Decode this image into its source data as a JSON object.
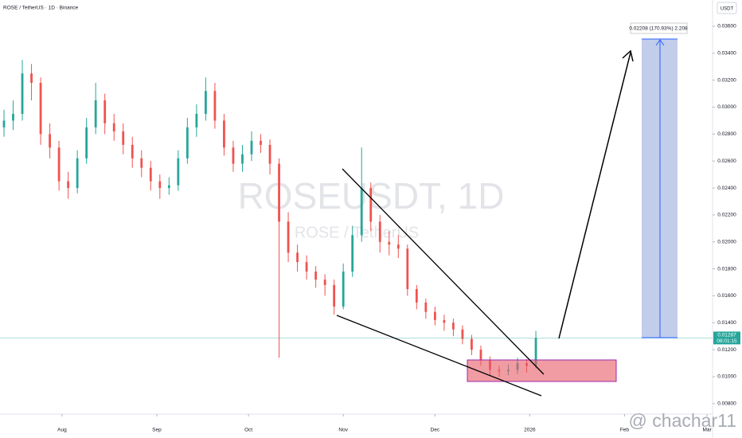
{
  "header": {
    "symbol": "ROSE / TetherUS · 1D · Binance",
    "currency": "USDT"
  },
  "watermark": {
    "ticker": "ROSEUSDT, 1D",
    "name": "ROSE / TetherUS"
  },
  "author": "@ chachar11",
  "chart_data": {
    "type": "candlestick",
    "xlim": [
      -20.3,
      212.8
    ],
    "ylim": [
      0.00722,
      0.03795
    ],
    "xticks": [
      {
        "value": 0,
        "label": "Aug"
      },
      {
        "value": 31,
        "label": "Sep"
      },
      {
        "value": 61,
        "label": "Oct"
      },
      {
        "value": 92,
        "label": "Nov"
      },
      {
        "value": 122,
        "label": "Dec"
      },
      {
        "value": 153,
        "label": "2026"
      },
      {
        "value": 184,
        "label": "Feb"
      },
      {
        "value": 211,
        "label": "Mar"
      }
    ],
    "yticks": [
      {
        "value": 0.008,
        "label": "0.00800"
      },
      {
        "value": 0.01,
        "label": "0.01000"
      },
      {
        "value": 0.012,
        "label": "0.01200"
      },
      {
        "value": 0.014,
        "label": "0.01400"
      },
      {
        "value": 0.016,
        "label": "0.01600"
      },
      {
        "value": 0.018,
        "label": "0.01800"
      },
      {
        "value": 0.02,
        "label": "0.02000"
      },
      {
        "value": 0.022,
        "label": "0.02200"
      },
      {
        "value": 0.024,
        "label": "0.02400"
      },
      {
        "value": 0.026,
        "label": "0.02600"
      },
      {
        "value": 0.028,
        "label": "0.02800"
      },
      {
        "value": 0.03,
        "label": "0.03000"
      },
      {
        "value": 0.032,
        "label": "0.03200"
      },
      {
        "value": 0.034,
        "label": "0.03400"
      },
      {
        "value": 0.036,
        "label": "0.03600"
      }
    ],
    "grid": false,
    "up_color": "#26a69a",
    "down_color": "#ef5350",
    "x": [
      -19,
      -16,
      -13,
      -10,
      -7,
      -4,
      -1,
      2,
      5,
      8,
      11,
      14,
      17,
      20,
      23,
      26,
      29,
      32,
      35,
      38,
      41,
      44,
      47,
      50,
      53,
      56,
      59,
      62,
      65,
      68,
      71,
      74,
      77,
      80,
      83,
      86,
      89,
      92,
      95,
      98,
      101,
      104,
      107,
      110,
      113,
      116,
      119,
      122,
      125,
      128,
      131,
      134,
      137,
      140,
      143,
      146,
      149,
      152,
      155
    ],
    "open": [
      0.0285,
      0.029,
      0.0295,
      0.0325,
      0.0318,
      0.028,
      0.027,
      0.0245,
      0.024,
      0.0262,
      0.0285,
      0.0305,
      0.0288,
      0.0282,
      0.0272,
      0.0262,
      0.0255,
      0.0245,
      0.024,
      0.0242,
      0.0262,
      0.0285,
      0.0295,
      0.0312,
      0.029,
      0.027,
      0.0258,
      0.0265,
      0.0275,
      0.0272,
      0.0258,
      0.0215,
      0.0192,
      0.0185,
      0.0178,
      0.0172,
      0.0168,
      0.0152,
      0.0178,
      0.0205,
      0.024,
      0.0215,
      0.02,
      0.0198,
      0.0195,
      0.0165,
      0.0155,
      0.0148,
      0.0142,
      0.014,
      0.0135,
      0.0128,
      0.012,
      0.0112,
      0.0105,
      0.0104,
      0.0105,
      0.011,
      0.0108
    ],
    "high": [
      0.0298,
      0.0305,
      0.0335,
      0.0332,
      0.0322,
      0.0288,
      0.0275,
      0.0252,
      0.0268,
      0.0292,
      0.0318,
      0.031,
      0.0295,
      0.0288,
      0.0278,
      0.0268,
      0.026,
      0.025,
      0.0248,
      0.0268,
      0.0292,
      0.0302,
      0.0322,
      0.0318,
      0.0295,
      0.0275,
      0.0272,
      0.0282,
      0.028,
      0.0276,
      0.0262,
      0.0222,
      0.0198,
      0.019,
      0.0182,
      0.0176,
      0.0172,
      0.0184,
      0.0212,
      0.027,
      0.0244,
      0.022,
      0.0208,
      0.0205,
      0.0198,
      0.0168,
      0.0158,
      0.0152,
      0.0146,
      0.0143,
      0.0138,
      0.0131,
      0.0123,
      0.0115,
      0.0108,
      0.0109,
      0.0114,
      0.0113,
      0.0134
    ],
    "low": [
      0.0278,
      0.0283,
      0.029,
      0.0305,
      0.0272,
      0.0262,
      0.0238,
      0.0232,
      0.0236,
      0.0258,
      0.028,
      0.028,
      0.0275,
      0.0265,
      0.0255,
      0.0248,
      0.0238,
      0.0232,
      0.0235,
      0.0238,
      0.0258,
      0.0278,
      0.029,
      0.0284,
      0.0264,
      0.0252,
      0.0252,
      0.026,
      0.0266,
      0.025,
      0.0114,
      0.0185,
      0.0178,
      0.0172,
      0.0166,
      0.016,
      0.0146,
      0.015,
      0.0174,
      0.02,
      0.0208,
      0.0192,
      0.019,
      0.0188,
      0.016,
      0.015,
      0.0143,
      0.0138,
      0.0134,
      0.013,
      0.0124,
      0.0116,
      0.0108,
      0.0101,
      0.01,
      0.0101,
      0.0102,
      0.0103,
      0.0106
    ],
    "close": [
      0.029,
      0.0295,
      0.0325,
      0.0318,
      0.028,
      0.027,
      0.0245,
      0.024,
      0.0262,
      0.0285,
      0.0305,
      0.0288,
      0.0282,
      0.0272,
      0.0262,
      0.0255,
      0.0245,
      0.024,
      0.0242,
      0.0262,
      0.0285,
      0.0295,
      0.0312,
      0.029,
      0.027,
      0.0258,
      0.0265,
      0.0275,
      0.0272,
      0.0258,
      0.0215,
      0.0192,
      0.0185,
      0.0178,
      0.0172,
      0.0168,
      0.0152,
      0.0178,
      0.0205,
      0.024,
      0.0215,
      0.02,
      0.0198,
      0.0195,
      0.0165,
      0.0155,
      0.0148,
      0.0142,
      0.014,
      0.0135,
      0.0128,
      0.012,
      0.0112,
      0.0105,
      0.0104,
      0.0105,
      0.011,
      0.0108,
      0.01287
    ],
    "last_price": 0.01287,
    "countdown": "08:01:15",
    "projection_label": "0.02208 (170.93%) 2.208"
  }
}
